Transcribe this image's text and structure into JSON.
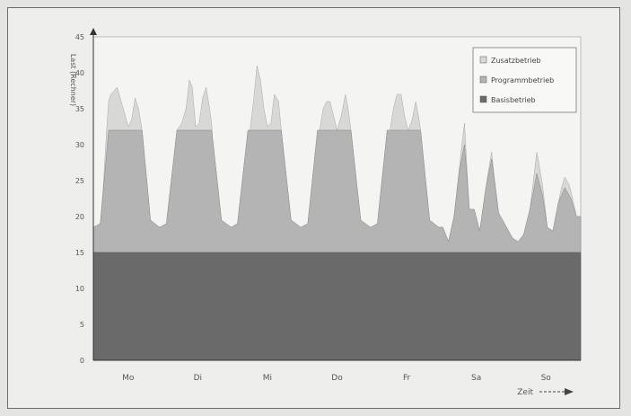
{
  "chart_data": {
    "type": "area",
    "title": "",
    "xlabel": "Zeit",
    "ylabel": "Last (Rechner)",
    "ylim": [
      0,
      45
    ],
    "yticks": [
      0,
      5,
      10,
      15,
      20,
      25,
      30,
      35,
      40,
      45
    ],
    "xlim": [
      0,
      7
    ],
    "categories": [
      "Mo",
      "Di",
      "Mi",
      "Do",
      "Fr",
      "Sa",
      "So"
    ],
    "grid": false,
    "legend_position": "top-right",
    "colors": {
      "basis": "#6a6a6a",
      "programm": "#b4b4b4",
      "zusatz": "#d8d8d6",
      "plot_bg": "#f4f4f2"
    },
    "series": [
      {
        "name": "Basisbetrieb",
        "x": [
          0,
          7
        ],
        "values": [
          15,
          15
        ]
      },
      {
        "name": "Programmbetrieb",
        "x": [
          0,
          0.1,
          0.22,
          0.7,
          0.82,
          0.95,
          1.05,
          1.2,
          1.7,
          1.84,
          1.98,
          2.07,
          2.22,
          2.7,
          2.84,
          2.98,
          3.08,
          3.22,
          3.7,
          3.84,
          3.98,
          4.08,
          4.22,
          4.7,
          4.83,
          4.96,
          5.02,
          5.1,
          5.18,
          5.26,
          5.33,
          5.4,
          5.47,
          5.55,
          5.63,
          5.72,
          5.82,
          6.02,
          6.1,
          6.18,
          6.27,
          6.37,
          6.45,
          6.52,
          6.6,
          6.68,
          6.77,
          6.86,
          6.94,
          7
        ],
        "values": [
          3.5,
          4,
          17,
          17,
          4.5,
          3.5,
          4,
          17,
          17,
          4.5,
          3.5,
          4,
          17,
          17,
          4.5,
          3.5,
          4,
          17,
          17,
          4.5,
          3.5,
          4,
          17,
          17,
          4.5,
          3.5,
          3.5,
          1.5,
          5,
          11.5,
          15,
          6,
          6,
          3,
          8.5,
          13,
          5.5,
          2,
          1.5,
          2.5,
          6,
          11,
          8,
          3.5,
          3,
          7,
          9,
          7.5,
          5,
          5
        ]
      },
      {
        "name": "Zusatzbetrieb",
        "x": [
          0,
          0.08,
          0.14,
          0.2,
          0.25,
          0.3,
          0.34,
          0.4,
          0.46,
          0.5,
          0.55,
          0.6,
          0.65,
          0.7,
          0.74,
          0.8,
          0.85,
          0.9,
          1.1,
          1.2,
          1.27,
          1.33,
          1.38,
          1.42,
          1.47,
          1.52,
          1.57,
          1.62,
          1.67,
          1.71,
          1.78,
          1.9,
          2.1,
          2.2,
          2.25,
          2.3,
          2.35,
          2.4,
          2.45,
          2.5,
          2.55,
          2.6,
          2.66,
          2.7,
          2.78,
          2.9,
          3.1,
          3.2,
          3.25,
          3.3,
          3.35,
          3.4,
          3.45,
          3.5,
          3.56,
          3.62,
          3.66,
          3.7,
          3.78,
          3.9,
          4.1,
          4.2,
          4.26,
          4.31,
          4.36,
          4.42,
          4.47,
          4.52,
          4.58,
          4.63,
          4.67,
          4.7,
          4.78,
          4.9,
          5.02,
          5.1,
          5.18,
          5.26,
          5.3,
          5.33,
          5.36,
          5.4,
          5.47,
          5.55,
          5.63,
          5.66,
          5.72,
          5.75,
          5.82,
          6.02,
          6.1,
          6.18,
          6.27,
          6.32,
          6.37,
          6.45,
          6.52,
          6.6,
          6.68,
          6.72,
          6.77,
          6.83,
          6.86,
          6.94,
          7
        ],
        "values": [
          0,
          0,
          0.5,
          3.5,
          5,
          5.5,
          6,
          4,
          2,
          0.5,
          1.5,
          4.5,
          3,
          0,
          0,
          0,
          0,
          0,
          0,
          0,
          1,
          3,
          7,
          6,
          0.5,
          1,
          4.5,
          6,
          3,
          0,
          0,
          0,
          0,
          0,
          0,
          4,
          9,
          7,
          3,
          0.5,
          1,
          5,
          4,
          0,
          0,
          0,
          0,
          0,
          0,
          3,
          4,
          4,
          2,
          0,
          2,
          5,
          3,
          0,
          0,
          0,
          0,
          0,
          0,
          3,
          5,
          5,
          2,
          0,
          1.5,
          4,
          2,
          0,
          0,
          0,
          0,
          0,
          0,
          0.5,
          2,
          3,
          1.5,
          0,
          0,
          0,
          0,
          0.5,
          1,
          0.5,
          0,
          0,
          0,
          0,
          0,
          1.5,
          3,
          1.5,
          0,
          0,
          0,
          1,
          1.5,
          1.5,
          1,
          0,
          0
        ]
      }
    ]
  }
}
